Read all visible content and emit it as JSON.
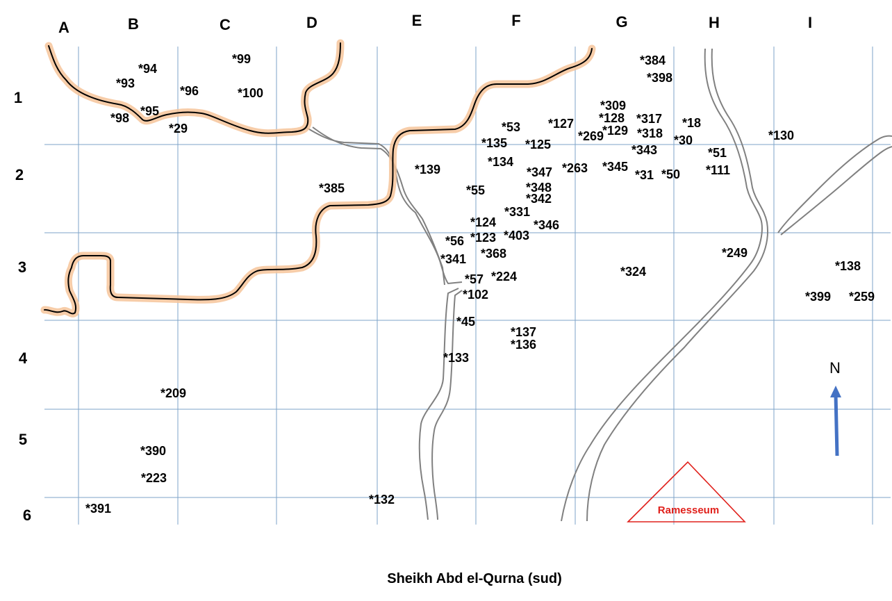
{
  "columns": [
    "A",
    "B",
    "C",
    "D",
    "E",
    "F",
    "G",
    "H",
    "I"
  ],
  "rows": [
    "1",
    "2",
    "3",
    "4",
    "5",
    "6"
  ],
  "tombs": [
    {
      "id": "t94",
      "label": "*94"
    },
    {
      "id": "t99",
      "label": "*99"
    },
    {
      "id": "t93",
      "label": "*93"
    },
    {
      "id": "t96",
      "label": "*96"
    },
    {
      "id": "t100",
      "label": "*100"
    },
    {
      "id": "t95",
      "label": "*95"
    },
    {
      "id": "t98",
      "label": "*98"
    },
    {
      "id": "t29",
      "label": "*29"
    },
    {
      "id": "t384",
      "label": "*384"
    },
    {
      "id": "t398",
      "label": "*398"
    },
    {
      "id": "t309",
      "label": "*309"
    },
    {
      "id": "t128",
      "label": "*128"
    },
    {
      "id": "t317",
      "label": "*317"
    },
    {
      "id": "t18",
      "label": "*18"
    },
    {
      "id": "t53",
      "label": "*53"
    },
    {
      "id": "t127",
      "label": "*127"
    },
    {
      "id": "t129",
      "label": "*129"
    },
    {
      "id": "t318",
      "label": "*318"
    },
    {
      "id": "t269",
      "label": "*269"
    },
    {
      "id": "t30",
      "label": "*30"
    },
    {
      "id": "t130",
      "label": "*130"
    },
    {
      "id": "t135",
      "label": "*135"
    },
    {
      "id": "t125",
      "label": "*125"
    },
    {
      "id": "t343",
      "label": "*343"
    },
    {
      "id": "t51",
      "label": "*51"
    },
    {
      "id": "t134",
      "label": "*134"
    },
    {
      "id": "t139",
      "label": "*139"
    },
    {
      "id": "t347",
      "label": "*347"
    },
    {
      "id": "t263",
      "label": "*263"
    },
    {
      "id": "t345",
      "label": "*345"
    },
    {
      "id": "t31",
      "label": "*31"
    },
    {
      "id": "t50",
      "label": "*50"
    },
    {
      "id": "t111",
      "label": "*111"
    },
    {
      "id": "t385",
      "label": "*385"
    },
    {
      "id": "t55",
      "label": "*55"
    },
    {
      "id": "t348",
      "label": "*348"
    },
    {
      "id": "t342",
      "label": "*342"
    },
    {
      "id": "t331",
      "label": "*331"
    },
    {
      "id": "t124",
      "label": "*124"
    },
    {
      "id": "t346",
      "label": "*346"
    },
    {
      "id": "t123",
      "label": "*123"
    },
    {
      "id": "t403",
      "label": "*403"
    },
    {
      "id": "t56",
      "label": "*56"
    },
    {
      "id": "t368",
      "label": "*368"
    },
    {
      "id": "t249",
      "label": "*249"
    },
    {
      "id": "t341",
      "label": "*341"
    },
    {
      "id": "t138",
      "label": "*138"
    },
    {
      "id": "t324",
      "label": "*324"
    },
    {
      "id": "t57",
      "label": "*57"
    },
    {
      "id": "t224",
      "label": "*224"
    },
    {
      "id": "t102",
      "label": "*102"
    },
    {
      "id": "t399",
      "label": "*399"
    },
    {
      "id": "t259",
      "label": "*259"
    },
    {
      "id": "t45",
      "label": "*45"
    },
    {
      "id": "t137",
      "label": "*137"
    },
    {
      "id": "t136",
      "label": "*136"
    },
    {
      "id": "t133",
      "label": "*133"
    },
    {
      "id": "t209",
      "label": "*209"
    },
    {
      "id": "t390",
      "label": "*390"
    },
    {
      "id": "t223",
      "label": "*223"
    },
    {
      "id": "t132",
      "label": "*132"
    },
    {
      "id": "t391",
      "label": "*391"
    }
  ],
  "landmark": {
    "label": "Ramesseum",
    "color": "#e0201b"
  },
  "north_label": "N",
  "caption": "Sheikh Abd el-Qurna (sud)",
  "colors": {
    "grid": "#7ea3c8",
    "road": "#808080",
    "wadi": "#000000",
    "wadi_glow": "#f6c49a",
    "arrow": "#4472c4"
  },
  "icons": {
    "north_arrow": "arrow-up-icon",
    "landmark": "triangle-outline-icon"
  }
}
